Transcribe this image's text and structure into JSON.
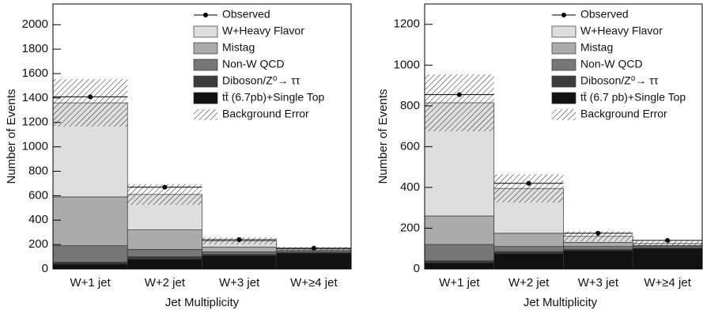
{
  "chart_data": [
    {
      "type": "stacked-bar",
      "ylabel": "Number of Events",
      "xlabel": "Jet Multiplicity",
      "categories": [
        "W+1 jet",
        "W+2 jet",
        "W+3 jet",
        "W+≥4 jet"
      ],
      "ylim": [
        0,
        2170
      ],
      "yticks": [
        0,
        200,
        400,
        600,
        800,
        1000,
        1200,
        1400,
        1600,
        1800,
        2000
      ],
      "series": [
        {
          "name": "tt̄ (6.7pb)+Single Top",
          "color": "#111111",
          "values": [
            40,
            80,
            110,
            130
          ]
        },
        {
          "name": "Diboson/Z⁰→ ττ",
          "color": "#3c3c3c",
          "values": [
            15,
            20,
            10,
            5
          ]
        },
        {
          "name": "Non-W QCD",
          "color": "#777777",
          "values": [
            135,
            60,
            20,
            10
          ]
        },
        {
          "name": "Mistag",
          "color": "#ababab",
          "values": [
            400,
            160,
            40,
            10
          ]
        },
        {
          "name": "W+Heavy Flavor",
          "color": "#dedede",
          "values": [
            770,
            290,
            50,
            10
          ]
        }
      ],
      "observed": {
        "name": "Observed",
        "values": [
          1410,
          670,
          240,
          170
        ]
      },
      "error": {
        "name": "Background Error",
        "values": [
          195,
          85,
          30,
          15
        ]
      }
    },
    {
      "type": "stacked-bar",
      "ylabel": "Number of Events",
      "xlabel": "Jet Multiplicity",
      "categories": [
        "W+1 jet",
        "W+2 jet",
        "W+3 jet",
        "W+≥4 jet"
      ],
      "ylim": [
        0,
        1300
      ],
      "yticks": [
        0,
        200,
        400,
        600,
        800,
        1000,
        1200
      ],
      "series": [
        {
          "name": "tt̄ (6.7 pb)+Single Top",
          "color": "#111111",
          "values": [
            30,
            75,
            90,
            100
          ]
        },
        {
          "name": "Diboson/Z⁰→ ττ",
          "color": "#3c3c3c",
          "values": [
            10,
            10,
            5,
            3
          ]
        },
        {
          "name": "Non-W QCD",
          "color": "#777777",
          "values": [
            80,
            25,
            15,
            7
          ]
        },
        {
          "name": "Mistag",
          "color": "#ababab",
          "values": [
            140,
            65,
            20,
            5
          ]
        },
        {
          "name": "W+Heavy Flavor",
          "color": "#dedede",
          "values": [
            555,
            220,
            30,
            10
          ]
        }
      ],
      "observed": {
        "name": "Observed",
        "values": [
          855,
          420,
          175,
          140
        ]
      },
      "error": {
        "name": "Background Error",
        "values": [
          140,
          70,
          25,
          12
        ]
      }
    }
  ]
}
